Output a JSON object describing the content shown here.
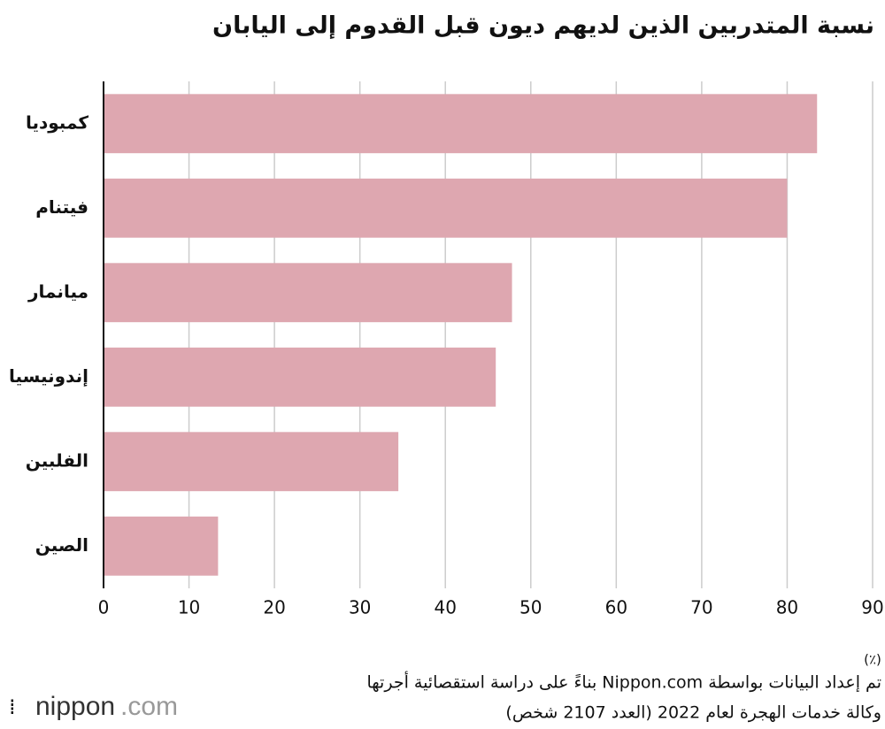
{
  "chart_data": {
    "type": "bar",
    "orientation": "horizontal",
    "title": "نسبة المتدربين الذين لديهم ديون قبل القدوم إلى اليابان",
    "categories": [
      "كمبوديا",
      "فيتنام",
      "ميانمار",
      "إندونيسيا",
      "الفلبين",
      "الصين"
    ],
    "values": [
      83.5,
      80,
      47.8,
      45.9,
      34.5,
      13.4
    ],
    "color": "#dea7b0",
    "xlim": [
      0,
      90
    ],
    "xticks": [
      0,
      10,
      20,
      30,
      40,
      50,
      60,
      70,
      80,
      90
    ],
    "x_unit": "(٪)",
    "grid": true,
    "source": [
      "تم إعداد البيانات بواسطة Nippon.com بناءً على دراسة استقصائية أجرتها",
      "وكالة خدمات الهجرة لعام 2022 (العدد 2107 شخص)"
    ],
    "logo": [
      "nippon",
      ".com"
    ]
  }
}
